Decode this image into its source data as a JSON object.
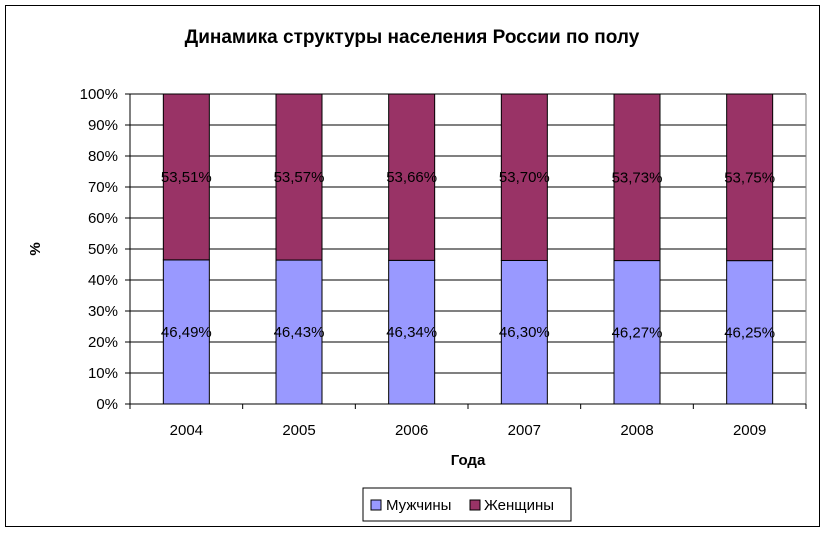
{
  "chart_data": {
    "type": "bar",
    "stacked": "percent",
    "title": "Динамика структуры населения России по полу",
    "xlabel": "Года",
    "ylabel": "%",
    "categories": [
      "2004",
      "2005",
      "2006",
      "2007",
      "2008",
      "2009"
    ],
    "series": [
      {
        "name": "Мужчины",
        "color": "#9999ff",
        "values": [
          46.49,
          46.43,
          46.34,
          46.3,
          46.27,
          46.25
        ],
        "labels": [
          "46,49%",
          "46,43%",
          "46,34%",
          "46,30%",
          "46,27%",
          "46,25%"
        ]
      },
      {
        "name": "Женщины",
        "color": "#993366",
        "values": [
          53.51,
          53.57,
          53.66,
          53.7,
          53.73,
          53.75
        ],
        "labels": [
          "53,51%",
          "53,57%",
          "53,66%",
          "53,70%",
          "53,73%",
          "53,75%"
        ]
      }
    ],
    "ylim": [
      0,
      100
    ],
    "yticks": [
      "0%",
      "10%",
      "20%",
      "30%",
      "40%",
      "50%",
      "60%",
      "70%",
      "80%",
      "90%",
      "100%"
    ],
    "grid": true,
    "legend": "bottom"
  }
}
